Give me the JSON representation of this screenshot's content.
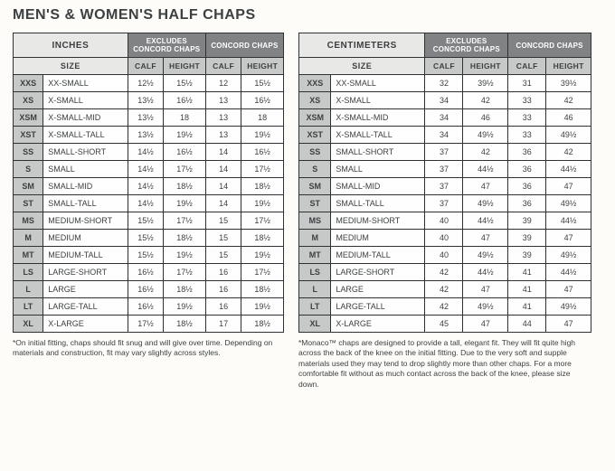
{
  "title": "MEN'S & WOMEN'S HALF CHAPS",
  "labels": {
    "size": "SIZE",
    "calf": "CALF",
    "height": "HEIGHT",
    "excludes": "EXCLUDES CONCORD CHAPS",
    "concord": "CONCORD CHAPS"
  },
  "sizes": [
    {
      "code": "XXS",
      "name": "XX-SMALL"
    },
    {
      "code": "XS",
      "name": "X-SMALL"
    },
    {
      "code": "XSM",
      "name": "X-SMALL-MID"
    },
    {
      "code": "XST",
      "name": "X-SMALL-TALL"
    },
    {
      "code": "SS",
      "name": "SMALL-SHORT"
    },
    {
      "code": "S",
      "name": "SMALL"
    },
    {
      "code": "SM",
      "name": "SMALL-MID"
    },
    {
      "code": "ST",
      "name": "SMALL-TALL"
    },
    {
      "code": "MS",
      "name": "MEDIUM-SHORT"
    },
    {
      "code": "M",
      "name": "MEDIUM"
    },
    {
      "code": "MT",
      "name": "MEDIUM-TALL"
    },
    {
      "code": "LS",
      "name": "LARGE-SHORT"
    },
    {
      "code": "L",
      "name": "LARGE"
    },
    {
      "code": "LT",
      "name": "LARGE-TALL"
    },
    {
      "code": "XL",
      "name": "X-LARGE"
    }
  ],
  "inches": {
    "unit": "INCHES",
    "name_col_width": 90,
    "excludes": [
      [
        "12½",
        "15½"
      ],
      [
        "13½",
        "16½"
      ],
      [
        "13½",
        "18"
      ],
      [
        "13½",
        "19½"
      ],
      [
        "14½",
        "16½"
      ],
      [
        "14½",
        "17½"
      ],
      [
        "14½",
        "18½"
      ],
      [
        "14½",
        "19½"
      ],
      [
        "15½",
        "17½"
      ],
      [
        "15½",
        "18½"
      ],
      [
        "15½",
        "19½"
      ],
      [
        "16½",
        "17½"
      ],
      [
        "16½",
        "18½"
      ],
      [
        "16½",
        "19½"
      ],
      [
        "17½",
        "18½"
      ]
    ],
    "concord": [
      [
        "12",
        "15½"
      ],
      [
        "13",
        "16½"
      ],
      [
        "13",
        "18"
      ],
      [
        "13",
        "19½"
      ],
      [
        "14",
        "16½"
      ],
      [
        "14",
        "17½"
      ],
      [
        "14",
        "18½"
      ],
      [
        "14",
        "19½"
      ],
      [
        "15",
        "17½"
      ],
      [
        "15",
        "18½"
      ],
      [
        "15",
        "19½"
      ],
      [
        "16",
        "17½"
      ],
      [
        "16",
        "18½"
      ],
      [
        "16",
        "19½"
      ],
      [
        "17",
        "18½"
      ]
    ],
    "footnote": "*On initial fitting, chaps should fit snug and will give over time. Depending on materials and construction, fit may vary slightly across styles."
  },
  "centimeters": {
    "unit": "CENTIMETERS",
    "name_col_width": 94,
    "excludes": [
      [
        "32",
        "39½"
      ],
      [
        "34",
        "42"
      ],
      [
        "34",
        "46"
      ],
      [
        "34",
        "49½"
      ],
      [
        "37",
        "42"
      ],
      [
        "37",
        "44½"
      ],
      [
        "37",
        "47"
      ],
      [
        "37",
        "49½"
      ],
      [
        "40",
        "44½"
      ],
      [
        "40",
        "47"
      ],
      [
        "40",
        "49½"
      ],
      [
        "42",
        "44½"
      ],
      [
        "42",
        "47"
      ],
      [
        "42",
        "49½"
      ],
      [
        "45",
        "47"
      ]
    ],
    "concord": [
      [
        "31",
        "39½"
      ],
      [
        "33",
        "42"
      ],
      [
        "33",
        "46"
      ],
      [
        "33",
        "49½"
      ],
      [
        "36",
        "42"
      ],
      [
        "36",
        "44½"
      ],
      [
        "36",
        "47"
      ],
      [
        "36",
        "49½"
      ],
      [
        "39",
        "44½"
      ],
      [
        "39",
        "47"
      ],
      [
        "39",
        "49½"
      ],
      [
        "41",
        "44½"
      ],
      [
        "41",
        "47"
      ],
      [
        "41",
        "49½"
      ],
      [
        "44",
        "47"
      ]
    ],
    "footnote": "*Monaco™ chaps are designed to provide a tall, elegant fit. They will fit quite high across the back of the knee on the initial fitting. Due to the very soft and supple materials used they may tend to drop slightly more than other chaps. For a more comfortable fit without as much contact across the back of the knee, please size down."
  }
}
